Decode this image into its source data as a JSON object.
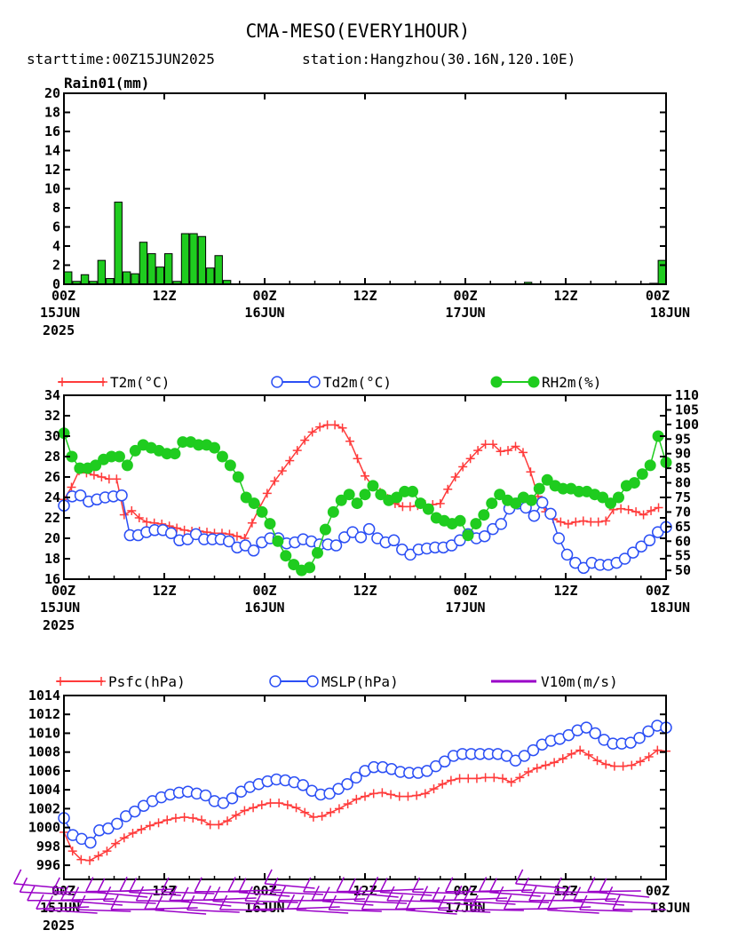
{
  "header": {
    "title": "CMA-MESO(EVERY1HOUR)",
    "subtitle_start": "starttime:00Z15JUN2025",
    "subtitle_station": "station:Hangzhou(30.16N,120.10E)"
  },
  "x_axis": {
    "time_labels": [
      "00Z",
      "12Z",
      "00Z",
      "12Z",
      "00Z",
      "12Z",
      "00Z"
    ],
    "time_hours": [
      0,
      12,
      24,
      36,
      48,
      60,
      72
    ],
    "date_labels": [
      {
        "hour": 0,
        "text": "15JUN"
      },
      {
        "hour": 24,
        "text": "16JUN"
      },
      {
        "hour": 48,
        "text": "17JUN"
      },
      {
        "hour": 72,
        "text": "18JUN"
      }
    ],
    "year_label": "2025"
  },
  "colors": {
    "rain_fill": "#1fcc1f",
    "t2m": "#ff3b3b",
    "td2m": "#2b4ff5",
    "rh2m": "#1fcc1f",
    "psfc": "#ff3b3b",
    "mslp": "#2b4ff5",
    "wind": "#9a00c8"
  },
  "chart_data": [
    {
      "type": "bar",
      "title": "Rain01(mm)",
      "x_hours": [
        1,
        2,
        3,
        4,
        5,
        6,
        7,
        8,
        9,
        10,
        11,
        12,
        13,
        14,
        15,
        16,
        17,
        18,
        19,
        20,
        21,
        22,
        56,
        71,
        72
      ],
      "values": [
        1.3,
        0.3,
        1.0,
        0.3,
        2.5,
        0.6,
        8.6,
        1.3,
        1.1,
        4.4,
        3.2,
        1.8,
        3.2,
        0.3,
        5.3,
        5.3,
        5.0,
        1.7,
        3.0,
        0.4,
        0.0,
        0.0,
        0.2,
        0.1,
        2.5
      ],
      "xlim": [
        0,
        72
      ],
      "ylim": [
        0,
        20
      ],
      "yticks": [
        0,
        2,
        4,
        6,
        8,
        10,
        12,
        14,
        16,
        18,
        20
      ]
    },
    {
      "type": "line",
      "xlim": [
        0,
        72
      ],
      "left_axis": {
        "ylim": [
          16,
          34
        ],
        "yticks": [
          16,
          18,
          20,
          22,
          24,
          26,
          28,
          30,
          32,
          34
        ]
      },
      "right_axis": {
        "ylim": [
          47,
          110
        ],
        "yticks": [
          50,
          55,
          60,
          65,
          70,
          75,
          80,
          85,
          90,
          95,
          100,
          105,
          110
        ]
      },
      "series": [
        {
          "name": "T2m(°C)",
          "axis": "left",
          "marker": "plus",
          "values": [
            23.8,
            25.0,
            26.6,
            26.4,
            26.2,
            26.0,
            25.8,
            25.8,
            22.3,
            22.7,
            22.0,
            21.6,
            21.5,
            21.4,
            21.2,
            21.0,
            20.8,
            20.7,
            20.7,
            20.6,
            20.5,
            20.5,
            20.4,
            20.2,
            20.0,
            21.5,
            23.0,
            24.4,
            25.6,
            26.6,
            27.6,
            28.6,
            29.6,
            30.4,
            30.9,
            31.1,
            31.1,
            30.8,
            29.5,
            27.8,
            26.1,
            25.1,
            24.5,
            23.9,
            23.4,
            23.1,
            23.1,
            23.2,
            23.3,
            23.3,
            23.4,
            24.8,
            26.0,
            27.0,
            27.8,
            28.6,
            29.2,
            29.2,
            28.5,
            28.6,
            29.0,
            28.4,
            26.5,
            24.1,
            22.6,
            21.9,
            21.6,
            21.4,
            21.6,
            21.7,
            21.6,
            21.6,
            21.7,
            22.8,
            22.9,
            22.8,
            22.6,
            22.3,
            22.7,
            23.0
          ],
          "x_hours_start": 0,
          "x_hours_step": 0.9
        },
        {
          "name": "Td2m(°C)",
          "axis": "left",
          "marker": "circle",
          "values": [
            23.2,
            24.1,
            24.2,
            23.6,
            23.8,
            24.0,
            24.1,
            24.2,
            20.3,
            20.3,
            20.6,
            20.8,
            20.8,
            20.5,
            19.8,
            19.9,
            20.4,
            19.9,
            19.9,
            19.9,
            19.7,
            19.1,
            19.3,
            18.8,
            19.6,
            20.0,
            20.0,
            19.5,
            19.6,
            19.9,
            19.7,
            19.4,
            19.4,
            19.3,
            20.1,
            20.6,
            20.1,
            20.9,
            20.0,
            19.6,
            19.8,
            18.9,
            18.4,
            18.9,
            19.0,
            19.1,
            19.1,
            19.3,
            19.8,
            20.4,
            20.0,
            20.2,
            20.9,
            21.4,
            22.9,
            23.4,
            23.0,
            22.2,
            23.5,
            22.4,
            20.0,
            18.4,
            17.6,
            17.1,
            17.6,
            17.4,
            17.4,
            17.6,
            18.0,
            18.6,
            19.2,
            19.8,
            20.6,
            21.1
          ],
          "x_hours_start": 0,
          "x_hours_step": 0.9863
        },
        {
          "name": "RH2m(%)",
          "axis": "right",
          "marker": "dot",
          "values": [
            97,
            89,
            85,
            85,
            86,
            88,
            89,
            89,
            86,
            91,
            93,
            92,
            91,
            90,
            90,
            94,
            94,
            93,
            93,
            92,
            89,
            86,
            82,
            75,
            73,
            70,
            66,
            60,
            55,
            52,
            50,
            51,
            56,
            64,
            70,
            74,
            76,
            73,
            76,
            79,
            76,
            74,
            75,
            77,
            77,
            73,
            71,
            68,
            67,
            66,
            67,
            62,
            66,
            69,
            73,
            76,
            74,
            73,
            75,
            74,
            78,
            81,
            79,
            78,
            78,
            77,
            77,
            76,
            75,
            73,
            75,
            79,
            80,
            83,
            86,
            96,
            87
          ],
          "x_hours_start": 0,
          "x_hours_step": 0.9474
        }
      ]
    },
    {
      "type": "line",
      "xlim": [
        0,
        72
      ],
      "ylim": [
        994.5,
        1014
      ],
      "yticks": [
        996,
        998,
        1000,
        1002,
        1004,
        1006,
        1008,
        1010,
        1012,
        1014
      ],
      "series": [
        {
          "name": "Psfc(hPa)",
          "marker": "plus",
          "values": [
            999.5,
            997.5,
            996.6,
            996.5,
            997.0,
            997.5,
            998.3,
            998.9,
            999.4,
            999.8,
            1000.2,
            1000.5,
            1000.8,
            1001.0,
            1001.1,
            1001.0,
            1000.8,
            1000.3,
            1000.3,
            1000.7,
            1001.3,
            1001.8,
            1002.1,
            1002.4,
            1002.6,
            1002.6,
            1002.4,
            1002.1,
            1001.6,
            1001.1,
            1001.2,
            1001.6,
            1002.0,
            1002.5,
            1003.0,
            1003.3,
            1003.6,
            1003.7,
            1003.5,
            1003.3,
            1003.3,
            1003.4,
            1003.6,
            1004.1,
            1004.6,
            1005.0,
            1005.2,
            1005.2,
            1005.2,
            1005.3,
            1005.3,
            1005.2,
            1004.8,
            1005.3,
            1005.9,
            1006.3,
            1006.6,
            1006.9,
            1007.3,
            1007.8,
            1008.2,
            1007.7,
            1007.1,
            1006.7,
            1006.5,
            1006.5,
            1006.6,
            1007.0,
            1007.5,
            1008.2,
            1008.1
          ],
          "x_hours_start": 0,
          "x_hours_step": 1.0286
        },
        {
          "name": "MSLP(hPa)",
          "marker": "circle",
          "values": [
            1001.0,
            999.2,
            998.8,
            998.4,
            999.7,
            999.9,
            1000.4,
            1001.2,
            1001.7,
            1002.3,
            1002.8,
            1003.2,
            1003.5,
            1003.7,
            1003.8,
            1003.6,
            1003.4,
            1002.8,
            1002.6,
            1003.1,
            1003.8,
            1004.3,
            1004.6,
            1004.9,
            1005.1,
            1005.0,
            1004.8,
            1004.5,
            1003.9,
            1003.5,
            1003.6,
            1004.1,
            1004.6,
            1005.3,
            1006.0,
            1006.4,
            1006.4,
            1006.2,
            1005.9,
            1005.8,
            1005.8,
            1006.0,
            1006.5,
            1007.0,
            1007.6,
            1007.8,
            1007.8,
            1007.8,
            1007.8,
            1007.8,
            1007.6,
            1007.1,
            1007.6,
            1008.2,
            1008.8,
            1009.2,
            1009.4,
            1009.8,
            1010.3,
            1010.6,
            1010.0,
            1009.3,
            1008.9,
            1008.9,
            1009.0,
            1009.5,
            1010.2,
            1010.8,
            1010.6
          ],
          "x_hours_start": 0,
          "x_hours_step": 1.0588
        },
        {
          "name": "V10m(m/s)",
          "marker": "barb"
        }
      ]
    }
  ]
}
